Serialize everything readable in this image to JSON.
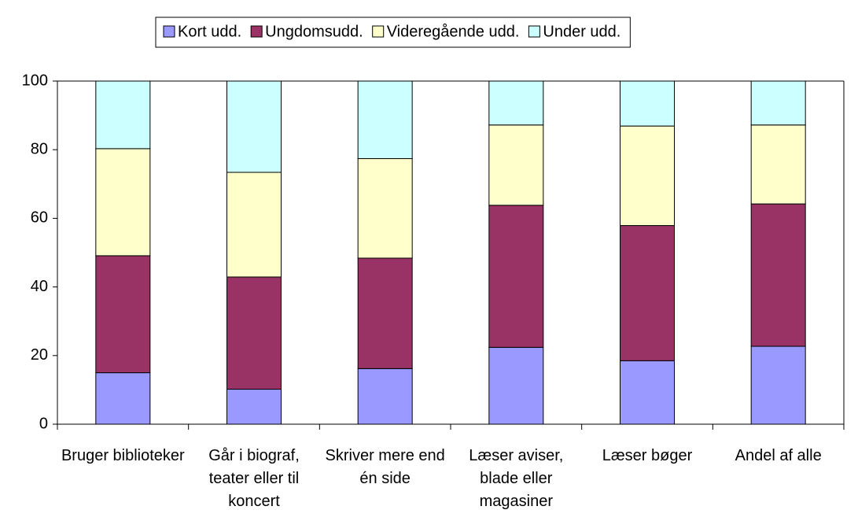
{
  "chart_data": {
    "type": "stacked_bar",
    "categories": [
      "Bruger biblioteker",
      "Går i biograf, teater eller til koncert",
      "Skriver mere end én side",
      "Læser aviser, blade eller magasiner",
      "Læser bøger",
      "Andel af alle"
    ],
    "series": [
      {
        "name": "Kort udd.",
        "color": "#9999ff",
        "values": [
          15,
          10.2,
          16.2,
          22.4,
          18.5,
          22.7
        ]
      },
      {
        "name": "Ungdomsudd.",
        "color": "#993366",
        "values": [
          34.1,
          32.7,
          32.2,
          41.4,
          39.4,
          41.5
        ]
      },
      {
        "name": "Videregående udd.",
        "color": "#ffffcc",
        "values": [
          31.2,
          30.5,
          29.0,
          23.4,
          29.0,
          23.0
        ]
      },
      {
        "name": "Under udd.",
        "color": "#ccffff",
        "values": [
          19.7,
          26.6,
          22.6,
          12.8,
          13.1,
          12.8
        ]
      }
    ],
    "ylim": [
      0,
      100
    ],
    "yticks": [
      0,
      20,
      40,
      60,
      80,
      100
    ],
    "grid": false,
    "legend": "top"
  }
}
